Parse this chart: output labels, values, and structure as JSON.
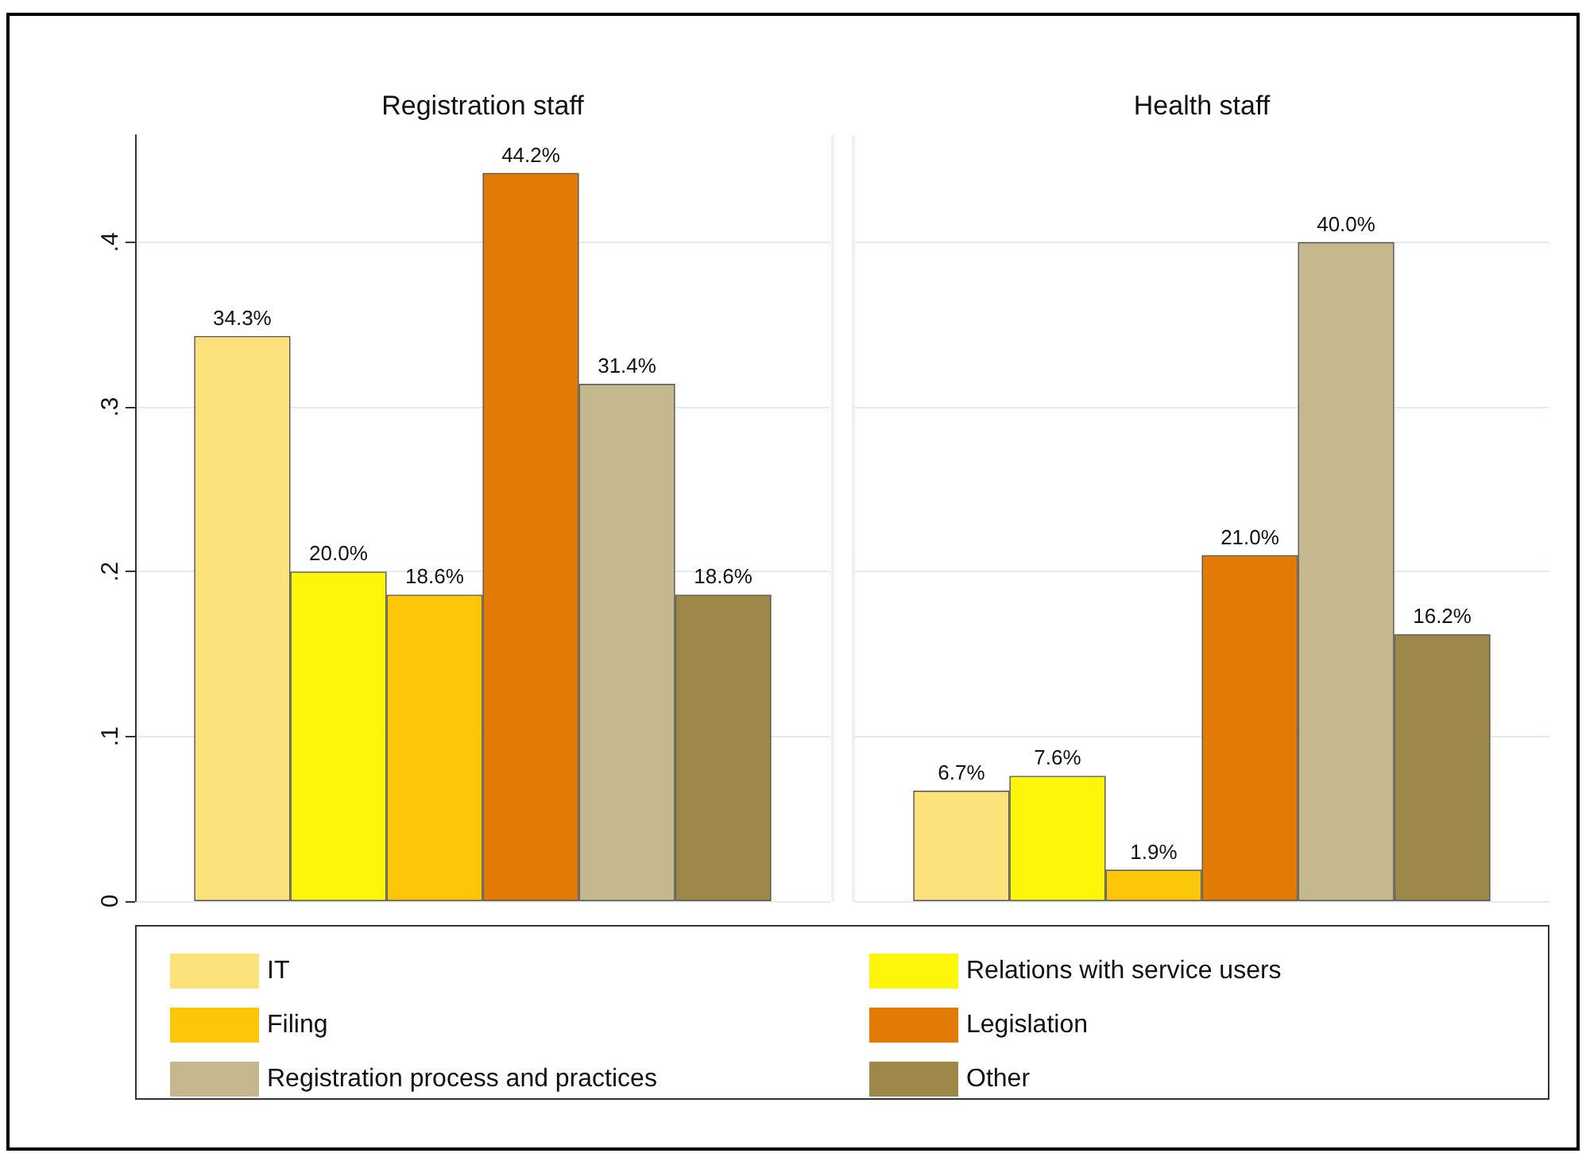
{
  "chart_data": {
    "type": "bar",
    "categories": [
      "Registration staff",
      "Health staff"
    ],
    "ylim": [
      0,
      0.465
    ],
    "yticks": [
      {
        "value": 0,
        "label": "0"
      },
      {
        "value": 0.1,
        "label": ".1"
      },
      {
        "value": 0.2,
        "label": ".2"
      },
      {
        "value": 0.3,
        "label": ".3"
      },
      {
        "value": 0.4,
        "label": ".4"
      }
    ],
    "grid": "y",
    "legend": "bottom",
    "series": [
      {
        "name": "IT",
        "color": "#fde17a",
        "values": [
          0.343,
          0.067
        ],
        "value_labels": [
          "34.3%",
          "6.7%"
        ]
      },
      {
        "name": "Relations with service users",
        "color": "#fdf60b",
        "values": [
          0.2,
          0.076
        ],
        "value_labels": [
          "20.0%",
          "7.6%"
        ]
      },
      {
        "name": "Filing",
        "color": "#fdc709",
        "values": [
          0.186,
          0.019
        ],
        "value_labels": [
          "18.6%",
          "1.9%"
        ]
      },
      {
        "name": "Legislation",
        "color": "#e27b05",
        "values": [
          0.442,
          0.21
        ],
        "value_labels": [
          "44.2%",
          "21.0%"
        ]
      },
      {
        "name": "Registration process and practices",
        "color": "#c5b88f",
        "values": [
          0.314,
          0.4
        ],
        "value_labels": [
          "31.4%",
          "40.0%"
        ]
      },
      {
        "name": "Other",
        "color": "#9d8849",
        "values": [
          0.186,
          0.162
        ],
        "value_labels": [
          "18.6%",
          "16.2%"
        ]
      }
    ]
  }
}
